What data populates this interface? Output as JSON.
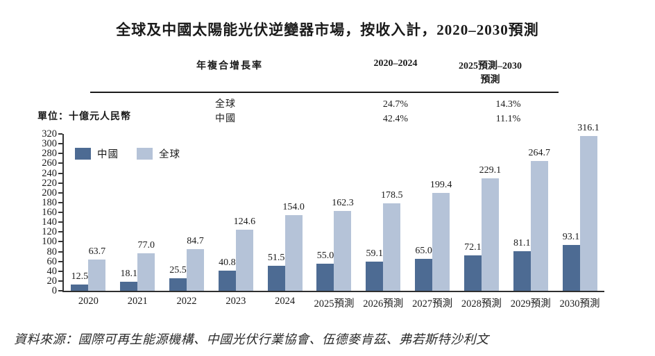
{
  "chart_data": {
    "type": "bar",
    "title": "全球及中國太陽能光伏逆變器市場，按收入計，2020–2030預測",
    "unit_label": "單位：十億元人民幣",
    "categories": [
      "2020",
      "2021",
      "2022",
      "2023",
      "2024",
      "2025預測",
      "2026預測",
      "2027預測",
      "2028預測",
      "2029預測",
      "2030預測"
    ],
    "series": [
      {
        "name": "中國",
        "color": "#4d6b93",
        "values": [
          12.5,
          18.1,
          25.5,
          40.8,
          51.5,
          55.0,
          59.1,
          65.0,
          72.1,
          81.1,
          93.1
        ]
      },
      {
        "name": "全球",
        "color": "#b5c3d8",
        "values": [
          63.7,
          77.0,
          84.7,
          124.6,
          154.0,
          162.3,
          178.5,
          199.4,
          229.1,
          264.7,
          316.1
        ]
      }
    ],
    "ylim": [
      0,
      320
    ],
    "ytick_step": 20,
    "grid": false,
    "legend_position": "top-left-inside",
    "value_labels": true,
    "value_label_decimals": 1
  },
  "cagr_table": {
    "header": {
      "label": "年複合增長率",
      "col1": "2020–2024",
      "col2": "2025預測–2030預測"
    },
    "rows": [
      {
        "label": "全球",
        "col1": "24.7%",
        "col2": "14.3%"
      },
      {
        "label": "中國",
        "col1": "42.4%",
        "col2": "11.1%"
      }
    ]
  },
  "source": {
    "text": "資料來源：國際可再生能源機構、中國光伏行業協會、伍德麥肯茲、弗若斯特沙利文"
  }
}
